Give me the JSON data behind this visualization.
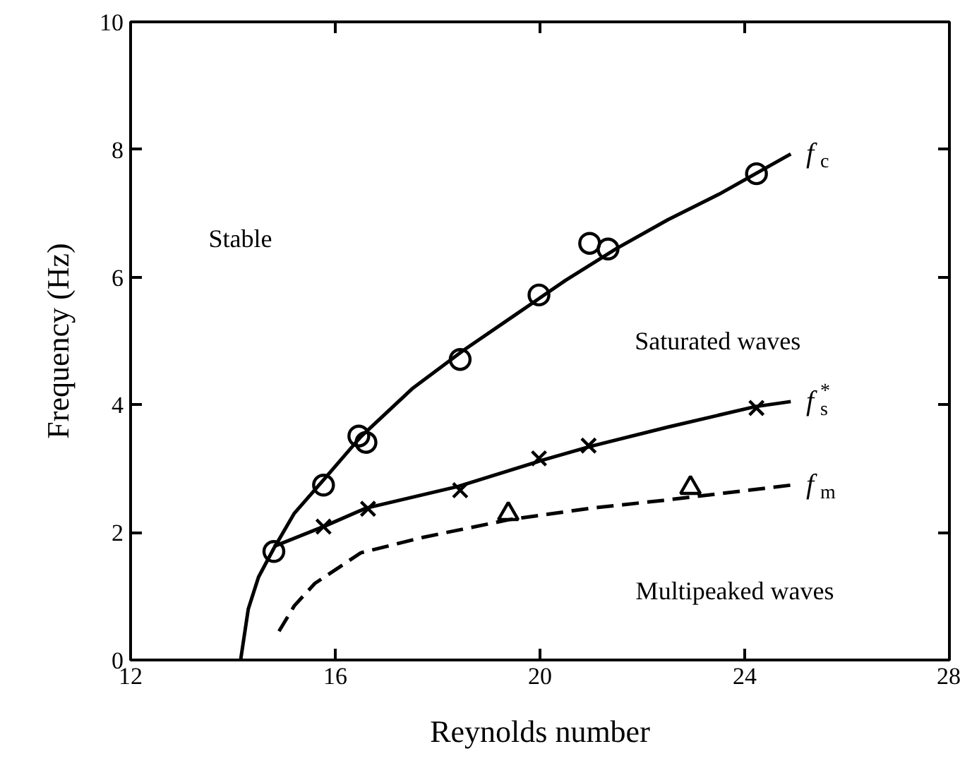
{
  "chart_data": {
    "type": "line",
    "xlabel": "Reynolds number",
    "ylabel": "Frequency (Hz)",
    "xlim": [
      12,
      28
    ],
    "xticks": [
      12,
      16,
      20,
      24,
      28
    ],
    "ylim": [
      0,
      10
    ],
    "yticks": [
      0,
      2,
      4,
      6,
      8,
      10
    ],
    "grid": false,
    "series": [
      {
        "name": "f$_{c}$",
        "color": "#000000",
        "line_style": "solid",
        "x": [
          14.15,
          14.3,
          14.5,
          14.8,
          15.2,
          15.8,
          16.5,
          17.5,
          18.5,
          19.5,
          20.5,
          21.5,
          22.5,
          23.5,
          24.5,
          24.9
        ],
        "values": [
          0,
          0.8,
          1.3,
          1.75,
          2.3,
          2.85,
          3.5,
          4.25,
          4.85,
          5.4,
          5.95,
          6.45,
          6.9,
          7.3,
          7.75,
          7.93
        ]
      },
      {
        "name": "f$_{s}$$^{*}$",
        "color": "#000000",
        "line_style": "solid",
        "x": [
          14.8,
          15.8,
          16.6,
          18.4,
          20.0,
          21.0,
          22.5,
          24.2,
          24.9
        ],
        "values": [
          1.78,
          2.1,
          2.38,
          2.72,
          3.12,
          3.35,
          3.65,
          3.97,
          4.05
        ]
      },
      {
        "name": "f$_{m}$",
        "color": "#000000",
        "line_style": "dashed",
        "x": [
          14.9,
          15.2,
          15.6,
          16.5,
          17.7,
          19.4,
          21.0,
          22.4,
          24.9
        ],
        "values": [
          0.45,
          0.85,
          1.2,
          1.68,
          1.92,
          2.2,
          2.38,
          2.5,
          2.74
        ]
      },
      {
        "type": "scatter",
        "marker": "circle",
        "color": "#000000",
        "x": [
          14.8,
          15.77,
          16.46,
          16.6,
          18.44,
          19.98,
          20.97,
          21.33,
          24.23
        ],
        "values": [
          1.7,
          2.74,
          3.51,
          3.41,
          4.71,
          5.72,
          6.53,
          6.44,
          7.62
        ]
      },
      {
        "type": "scatter",
        "marker": "cross",
        "color": "#000000",
        "x": [
          15.77,
          16.64,
          18.44,
          19.98,
          20.95,
          24.23
        ],
        "values": [
          2.09,
          2.37,
          2.66,
          3.16,
          3.36,
          3.95
        ]
      },
      {
        "type": "scatter",
        "marker": "triangle",
        "color": "#000000",
        "x": [
          19.38,
          22.94
        ],
        "values": [
          2.29,
          2.7
        ]
      }
    ],
    "annotations": [
      "Stable",
      "Saturated waves",
      "Multipeaked waves"
    ]
  }
}
